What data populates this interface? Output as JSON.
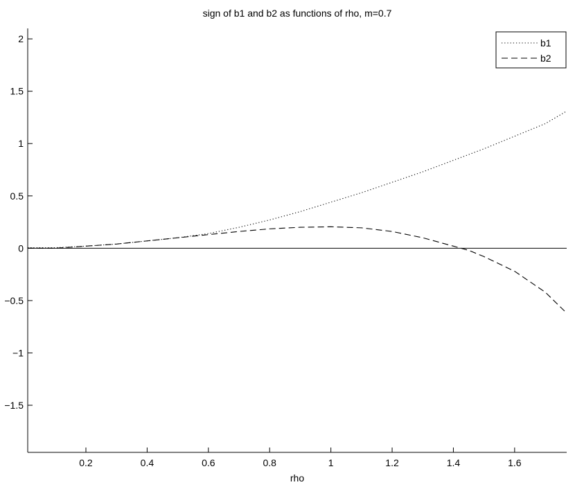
{
  "chart_data": {
    "type": "line",
    "title": "sign of b1 and b2 as functions of rho, m=0.7",
    "xlabel": "rho",
    "ylabel": "",
    "xlim": [
      0.01,
      1.77
    ],
    "ylim": [
      -1.95,
      2.1
    ],
    "xticks": [
      0.2,
      0.4,
      0.6,
      0.8,
      1,
      1.2,
      1.4,
      1.6
    ],
    "xtick_labels": [
      "0.2",
      "0.4",
      "0.6",
      "0.8",
      "1",
      "1.2",
      "1.4",
      "1.6"
    ],
    "yticks": [
      -1.5,
      -1,
      -0.5,
      0,
      0.5,
      1,
      1.5,
      2
    ],
    "ytick_labels": [
      "−1.5",
      "−1",
      "−0.5",
      "0",
      "0.5",
      "1",
      "1.5",
      "2"
    ],
    "grid": false,
    "legend_position": "top-right",
    "reference_line_y": 0,
    "series": [
      {
        "name": "b1",
        "style": "dotted",
        "color": "#000000",
        "x": [
          0.01,
          0.1,
          0.2,
          0.3,
          0.4,
          0.5,
          0.6,
          0.7,
          0.8,
          0.9,
          1.0,
          1.1,
          1.2,
          1.3,
          1.4,
          1.5,
          1.6,
          1.7,
          1.77
        ],
        "values": [
          0.005,
          0.005,
          0.02,
          0.04,
          0.07,
          0.1,
          0.14,
          0.2,
          0.27,
          0.35,
          0.44,
          0.53,
          0.63,
          0.73,
          0.84,
          0.95,
          1.07,
          1.19,
          1.31
        ]
      },
      {
        "name": "b2",
        "style": "dashed",
        "color": "#000000",
        "x": [
          0.01,
          0.1,
          0.2,
          0.3,
          0.4,
          0.5,
          0.6,
          0.7,
          0.8,
          0.9,
          1.0,
          1.1,
          1.2,
          1.3,
          1.4,
          1.45,
          1.5,
          1.6,
          1.7,
          1.77
        ],
        "values": [
          0.0,
          0.0,
          0.02,
          0.04,
          0.07,
          0.1,
          0.13,
          0.16,
          0.185,
          0.2,
          0.205,
          0.195,
          0.16,
          0.1,
          0.02,
          -0.02,
          -0.08,
          -0.22,
          -0.42,
          -0.62
        ]
      }
    ]
  }
}
